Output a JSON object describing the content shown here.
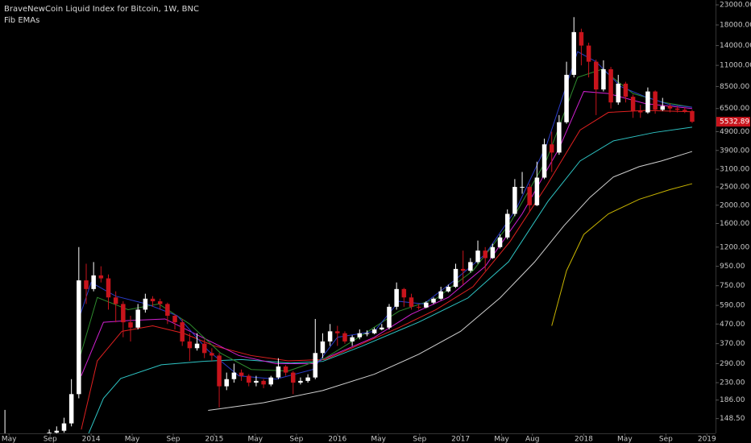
{
  "chart_data": {
    "type": "candlestick",
    "title": "BraveNewCoin Liquid Index for Bitcoin, 1W, BNC",
    "subtitle": "Fib EMAs",
    "log_scale": true,
    "grid": false,
    "up_color": "#ffffff",
    "down_color": "#c8141c",
    "xlim": [
      2013.26,
      2019.07
    ],
    "ylim": [
      124,
      24400
    ],
    "xticks": [
      {
        "value": 2013.333,
        "label": "May"
      },
      {
        "value": 2013.667,
        "label": "Sep"
      },
      2014,
      {
        "value": 2014.333,
        "label": "May"
      },
      {
        "value": 2014.667,
        "label": "Sep"
      },
      2015,
      {
        "value": 2015.333,
        "label": "May"
      },
      {
        "value": 2015.667,
        "label": "Sep"
      },
      2016,
      {
        "value": 2016.333,
        "label": "May"
      },
      {
        "value": 2016.667,
        "label": "Sep"
      },
      2017,
      {
        "value": 2017.333,
        "label": "May"
      },
      {
        "value": 2017.583,
        "label": "Aug"
      },
      2018,
      {
        "value": 2018.333,
        "label": "May"
      },
      {
        "value": 2018.667,
        "label": "Sep"
      },
      2019
    ],
    "yticks": [
      {
        "value": 23000,
        "label": "23000.00"
      },
      {
        "value": 18000,
        "label": "18000.00"
      },
      {
        "value": 14000,
        "label": "14000.00"
      },
      {
        "value": 11000,
        "label": "11000.00"
      },
      {
        "value": 8500,
        "label": "8500.00"
      },
      {
        "value": 6500,
        "label": "6500.00"
      },
      {
        "value": 4900,
        "label": "4900.00"
      },
      {
        "value": 3900,
        "label": "3900.00"
      },
      {
        "value": 3100,
        "label": "3100.00"
      },
      {
        "value": 2500,
        "label": "2500.00"
      },
      {
        "value": 2000,
        "label": "2000.00"
      },
      {
        "value": 1600,
        "label": "1600.00"
      },
      {
        "value": 1200,
        "label": "1200.00"
      },
      {
        "value": 950,
        "label": "950.00"
      },
      {
        "value": 750,
        "label": "750.00"
      },
      {
        "value": 590,
        "label": "590.00"
      },
      {
        "value": 470,
        "label": "470.00"
      },
      {
        "value": 370,
        "label": "370.00"
      },
      {
        "value": 290,
        "label": "290.00"
      },
      {
        "value": 230,
        "label": "230.00"
      },
      {
        "value": 186,
        "label": "186.00"
      },
      {
        "value": 148.5,
        "label": "148.50"
      }
    ],
    "candles": {
      "x": [
        2013.3,
        2013.36,
        2013.42,
        2013.48,
        2013.54,
        2013.6,
        2013.66,
        2013.72,
        2013.78,
        2013.84,
        2013.9,
        2013.96,
        2014.02,
        2014.08,
        2014.14,
        2014.2,
        2014.26,
        2014.32,
        2014.38,
        2014.44,
        2014.5,
        2014.56,
        2014.62,
        2014.68,
        2014.74,
        2014.8,
        2014.86,
        2014.92,
        2014.98,
        2015.04,
        2015.1,
        2015.16,
        2015.22,
        2015.28,
        2015.34,
        2015.4,
        2015.46,
        2015.52,
        2015.58,
        2015.64,
        2015.7,
        2015.76,
        2015.82,
        2015.88,
        2015.94,
        2016.0,
        2016.06,
        2016.12,
        2016.18,
        2016.24,
        2016.3,
        2016.36,
        2016.42,
        2016.48,
        2016.54,
        2016.6,
        2016.66,
        2016.72,
        2016.78,
        2016.84,
        2016.9,
        2016.96,
        2017.02,
        2017.08,
        2017.14,
        2017.2,
        2017.26,
        2017.32,
        2017.38,
        2017.44,
        2017.5,
        2017.56,
        2017.62,
        2017.68,
        2017.74,
        2017.8,
        2017.86,
        2017.92,
        2017.98,
        2018.04,
        2018.1,
        2018.16,
        2018.22,
        2018.28,
        2018.34,
        2018.4,
        2018.46,
        2018.52,
        2018.58,
        2018.64,
        2018.7,
        2018.76,
        2018.82,
        2018.88
      ],
      "open": [
        115,
        120,
        118,
        112,
        105,
        98,
        108,
        125,
        128,
        140,
        200,
        800,
        720,
        850,
        820,
        650,
        600,
        480,
        450,
        560,
        640,
        620,
        600,
        520,
        480,
        380,
        350,
        370,
        330,
        320,
        220,
        240,
        260,
        250,
        230,
        235,
        225,
        245,
        280,
        260,
        230,
        235,
        245,
        330,
        380,
        430,
        420,
        380,
        400,
        420,
        420,
        440,
        450,
        580,
        720,
        650,
        580,
        575,
        610,
        640,
        700,
        740,
        920,
        900,
        1000,
        1150,
        1050,
        1200,
        1350,
        1800,
        2500,
        2500,
        2000,
        2800,
        4200,
        3800,
        5500,
        9800,
        16500,
        14000,
        11500,
        8200,
        10500,
        7000,
        8800,
        7500,
        6300,
        6200,
        8000,
        6400,
        6700,
        6500,
        6400,
        6300
      ],
      "high": [
        165,
        124,
        120,
        114,
        108,
        112,
        130,
        135,
        150,
        240,
        1200,
        980,
        1000,
        950,
        860,
        700,
        620,
        520,
        600,
        680,
        660,
        640,
        610,
        530,
        500,
        420,
        420,
        390,
        350,
        330,
        260,
        290,
        270,
        255,
        250,
        240,
        250,
        310,
        285,
        265,
        245,
        255,
        500,
        420,
        470,
        460,
        430,
        410,
        440,
        435,
        450,
        470,
        600,
        780,
        730,
        680,
        600,
        620,
        650,
        740,
        760,
        980,
        1150,
        1050,
        1300,
        1200,
        1250,
        1400,
        1900,
        2750,
        3000,
        2600,
        3400,
        4500,
        4900,
        6000,
        11500,
        19800,
        17200,
        14500,
        11800,
        11700,
        10800,
        9800,
        9000,
        7700,
        6800,
        8400,
        8100,
        7400,
        6900,
        6700,
        6600,
        6400
      ],
      "low": [
        110,
        112,
        108,
        100,
        90,
        96,
        105,
        120,
        125,
        135,
        190,
        600,
        700,
        780,
        560,
        480,
        400,
        380,
        440,
        540,
        580,
        560,
        470,
        440,
        360,
        300,
        340,
        310,
        300,
        170,
        210,
        230,
        235,
        220,
        220,
        215,
        220,
        240,
        250,
        200,
        225,
        230,
        240,
        310,
        360,
        360,
        370,
        360,
        390,
        405,
        415,
        435,
        440,
        560,
        580,
        560,
        560,
        570,
        600,
        630,
        690,
        730,
        760,
        880,
        980,
        900,
        1040,
        1180,
        1320,
        1750,
        2300,
        1850,
        1980,
        2750,
        3000,
        3700,
        5400,
        9500,
        11000,
        9500,
        6000,
        8000,
        6500,
        6800,
        7000,
        5800,
        5800,
        6100,
        6100,
        6300,
        6200,
        6200,
        6150,
        5450
      ],
      "close": [
        120,
        118,
        112,
        105,
        98,
        108,
        125,
        128,
        140,
        200,
        800,
        720,
        850,
        820,
        650,
        600,
        480,
        450,
        560,
        640,
        620,
        600,
        520,
        480,
        380,
        350,
        370,
        330,
        320,
        220,
        240,
        260,
        250,
        230,
        235,
        225,
        245,
        280,
        260,
        230,
        235,
        245,
        330,
        380,
        430,
        420,
        380,
        400,
        420,
        420,
        440,
        450,
        580,
        720,
        650,
        580,
        575,
        610,
        640,
        700,
        740,
        920,
        900,
        1000,
        1150,
        1050,
        1200,
        1350,
        1800,
        2500,
        2500,
        2000,
        2800,
        4200,
        3800,
        5500,
        9800,
        16500,
        14000,
        11500,
        8200,
        10500,
        7000,
        8800,
        7500,
        6300,
        6200,
        8000,
        6400,
        6700,
        6500,
        6400,
        6300,
        5532.89
      ]
    },
    "series": [
      {
        "color": "#c8b400",
        "x": [
          2017.74,
          2017.86,
          2018.0,
          2018.2,
          2018.45,
          2018.7,
          2018.88
        ],
        "values": [
          460,
          900,
          1400,
          1800,
          2150,
          2420,
          2600
        ]
      },
      {
        "color": "#d0d0d0",
        "x": [
          2014.95,
          2015.4,
          2015.88,
          2016.3,
          2016.66,
          2017.0,
          2017.32,
          2017.6,
          2017.84,
          2018.05,
          2018.24,
          2018.45,
          2018.63,
          2018.88
        ],
        "values": [
          164,
          180,
          209,
          255,
          325,
          430,
          646,
          1000,
          1560,
          2200,
          2820,
          3200,
          3430,
          3850
        ]
      },
      {
        "color": "#2ec4c4",
        "x": [
          2013.98,
          2014.1,
          2014.24,
          2014.57,
          2014.9,
          2015.22,
          2015.62,
          2015.88,
          2016.2,
          2016.66,
          2017.06,
          2017.39,
          2017.71,
          2017.97,
          2018.24,
          2018.57,
          2018.88
        ],
        "values": [
          124,
          190,
          242,
          286,
          298,
          305,
          292,
          298,
          359,
          481,
          646,
          1005,
          2100,
          3430,
          4380,
          4850,
          5180
        ]
      },
      {
        "color": "#e02020",
        "x": [
          2013.92,
          2014.05,
          2014.25,
          2014.5,
          2014.75,
          2015.0,
          2015.3,
          2015.6,
          2015.9,
          2016.2,
          2016.5,
          2016.8,
          2017.1,
          2017.4,
          2017.7,
          2017.97,
          2018.2,
          2018.5,
          2018.88
        ],
        "values": [
          130,
          300,
          430,
          460,
          420,
          360,
          320,
          300,
          305,
          370,
          450,
          560,
          740,
          1280,
          2550,
          5000,
          6200,
          6350,
          6250
        ]
      },
      {
        "color": "#d020d0",
        "x": [
          2013.92,
          2014.1,
          2014.3,
          2014.6,
          2014.9,
          2015.2,
          2015.5,
          2015.8,
          2016.0,
          2016.3,
          2016.6,
          2016.9,
          2017.2,
          2017.5,
          2017.8,
          2018.0,
          2018.2,
          2018.5,
          2018.88
        ],
        "values": [
          250,
          480,
          490,
          500,
          400,
          320,
          290,
          290,
          330,
          400,
          530,
          650,
          950,
          1800,
          4000,
          8000,
          7800,
          6900,
          6500
        ]
      },
      {
        "color": "#2e8b2e",
        "x": [
          2013.9,
          2014.05,
          2014.3,
          2014.55,
          2014.8,
          2015.05,
          2015.3,
          2015.6,
          2015.9,
          2016.2,
          2016.5,
          2016.8,
          2017.1,
          2017.4,
          2017.7,
          2017.95,
          2018.15,
          2018.4,
          2018.65,
          2018.88
        ],
        "values": [
          300,
          650,
          560,
          600,
          470,
          330,
          270,
          265,
          310,
          410,
          550,
          640,
          900,
          1600,
          3500,
          9500,
          10500,
          7800,
          7000,
          6600
        ]
      },
      {
        "color": "#2a3cc8",
        "x": [
          2013.9,
          2014.0,
          2014.2,
          2014.45,
          2014.7,
          2014.95,
          2015.2,
          2015.5,
          2015.8,
          2016.0,
          2016.3,
          2016.5,
          2016.7,
          2016.95,
          2017.2,
          2017.45,
          2017.7,
          2017.95,
          2018.1,
          2018.3,
          2018.5,
          2018.7,
          2018.88
        ],
        "values": [
          500,
          780,
          660,
          600,
          520,
          340,
          250,
          240,
          270,
          400,
          430,
          620,
          600,
          800,
          1100,
          1900,
          4200,
          13000,
          11500,
          8500,
          7500,
          6800,
          6600
        ]
      }
    ]
  }
}
